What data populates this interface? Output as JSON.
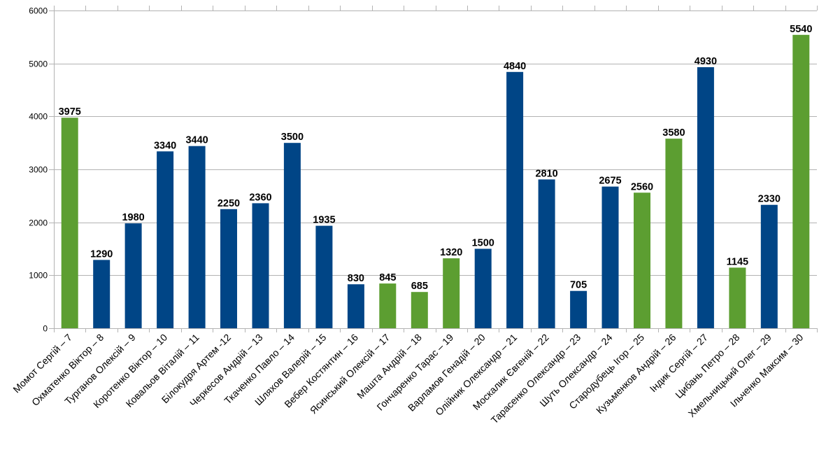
{
  "chart_data": {
    "type": "bar",
    "categories": [
      "Момот Сергій – 7",
      "Охматенко Віктор – 8",
      "Турганов Олексій – 9",
      "Коротенко Віктор – 10",
      "Ковальов Віталій – 11",
      "Білокудря Артем -12",
      "Черкесов Андрій – 13",
      "Ткаченко Павло – 14",
      "Шляхов Валерій – 15",
      "Вебер Костянтин – 16",
      "Ясинський Олексій – 17",
      "Машта Андрій – 18",
      "Гончаренко Тарас – 19",
      "Варламов Генадій – 20",
      "Олійник Олександр – 21",
      "Москалик Євгеній – 22",
      "Тарасенко Олександр – 23",
      "Шуть Олександр – 24",
      "Стародубець Ігор – 25",
      "Кузьменков Андрій – 26",
      "Індик Сергій – 27",
      "Цибань Петро – 28",
      "Хмельницький Олег – 29",
      "Ільченко Максим – 30"
    ],
    "values": [
      3975,
      1290,
      1980,
      3340,
      3440,
      2250,
      2360,
      3500,
      1935,
      830,
      845,
      685,
      1320,
      1500,
      4840,
      2810,
      705,
      2675,
      2560,
      3580,
      4930,
      1145,
      2330,
      5540
    ],
    "bar_colors": [
      "#5c9e31",
      "#004586",
      "#004586",
      "#004586",
      "#004586",
      "#004586",
      "#004586",
      "#004586",
      "#004586",
      "#004586",
      "#5c9e31",
      "#5c9e31",
      "#5c9e31",
      "#004586",
      "#004586",
      "#004586",
      "#004586",
      "#004586",
      "#5c9e31",
      "#5c9e31",
      "#004586",
      "#5c9e31",
      "#004586",
      "#5c9e31"
    ],
    "colors": {
      "green": "#5c9e31",
      "blue": "#004586",
      "grid": "#b3b3b3"
    },
    "title": "",
    "xlabel": "",
    "ylabel": "",
    "ylim": [
      0,
      6000
    ],
    "yticks": [
      0,
      1000,
      2000,
      3000,
      4000,
      5000,
      6000
    ],
    "grid": true,
    "data_labels": true,
    "x_tick_rotation": "45deg"
  }
}
